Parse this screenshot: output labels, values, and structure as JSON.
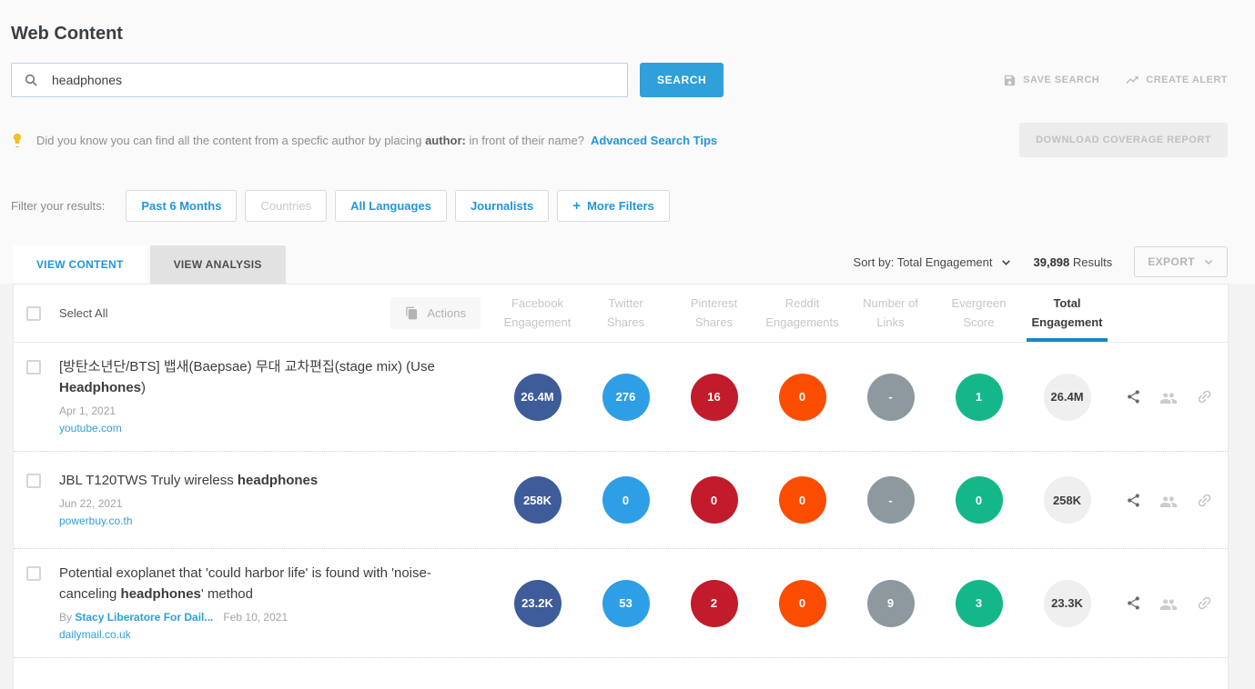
{
  "page": {
    "title": "Web Content"
  },
  "search": {
    "value": "headphones",
    "button": "SEARCH"
  },
  "header_actions": {
    "save_search": "SAVE SEARCH",
    "create_alert": "CREATE ALERT",
    "download_report": "DOWNLOAD COVERAGE REPORT"
  },
  "tip": {
    "prefix": "Did you know you can find all the content from a specfic author by placing ",
    "bold": "author:",
    "suffix": " in front of their name?",
    "link": "Advanced Search Tips"
  },
  "filters": {
    "label": "Filter your results:",
    "buttons": [
      {
        "label": "Past 6 Months",
        "state": "enabled",
        "plus": false
      },
      {
        "label": "Countries",
        "state": "disabled",
        "plus": false
      },
      {
        "label": "All Languages",
        "state": "enabled",
        "plus": false
      },
      {
        "label": "Journalists",
        "state": "enabled",
        "plus": false
      },
      {
        "label": "More Filters",
        "state": "enabled",
        "plus": true
      }
    ],
    "plus_glyph": "+"
  },
  "tabs": [
    {
      "label": "VIEW CONTENT",
      "active": true
    },
    {
      "label": "VIEW ANALYSIS",
      "active": false
    }
  ],
  "sort": {
    "label": "Sort by: Total Engagement",
    "results_count": "39,898",
    "results_label": "Results",
    "export_label": "EXPORT"
  },
  "table": {
    "select_all": "Select All",
    "actions_label": "Actions",
    "metric_columns": [
      {
        "line1": "Facebook",
        "line2": "Engagement",
        "color": "#3e5c9a",
        "text": "#ffffff",
        "active": false
      },
      {
        "line1": "Twitter",
        "line2": "Shares",
        "color": "#2e9fe6",
        "text": "#ffffff",
        "active": false
      },
      {
        "line1": "Pinterest",
        "line2": "Shares",
        "color": "#c11b2c",
        "text": "#ffffff",
        "active": false
      },
      {
        "line1": "Reddit",
        "line2": "Engagements",
        "color": "#fb4d00",
        "text": "#ffffff",
        "active": false
      },
      {
        "line1": "Number of",
        "line2": "Links",
        "color": "#8d999f",
        "text": "#ffffff",
        "active": false
      },
      {
        "line1": "Evergreen",
        "line2": "Score",
        "color": "#14b78a",
        "text": "#ffffff",
        "active": false
      },
      {
        "line1": "Total",
        "line2": "Engagement",
        "color": "#efefef",
        "text": "#3d3d3d",
        "active": true
      }
    ],
    "rows": [
      {
        "title": [
          {
            "t": "[방탄소년단/BTS] 뱁새(Baepsae) 무대 교차편집(stage mix) (Use ",
            "b": false
          },
          {
            "t": "Headphones",
            "b": true
          },
          {
            "t": ")",
            "b": false
          }
        ],
        "author_prefix": "",
        "author": "",
        "date": "Apr 1, 2021",
        "domain": "youtube.com",
        "metrics": [
          "26.4M",
          "276",
          "16",
          "0",
          "-",
          "1",
          "26.4M"
        ]
      },
      {
        "title": [
          {
            "t": "JBL T120TWS Truly wireless ",
            "b": false
          },
          {
            "t": "headphones",
            "b": true
          }
        ],
        "author_prefix": "",
        "author": "",
        "date": "Jun 22, 2021",
        "domain": "powerbuy.co.th",
        "metrics": [
          "258K",
          "0",
          "0",
          "0",
          "-",
          "0",
          "258K"
        ]
      },
      {
        "title": [
          {
            "t": "Potential exoplanet that 'could harbor life' is found with 'noise-canceling ",
            "b": false
          },
          {
            "t": "headphones",
            "b": true
          },
          {
            "t": "' method",
            "b": false
          }
        ],
        "author_prefix": "By ",
        "author": "Stacy Liberatore For Dail...",
        "date": "Feb 10, 2021",
        "domain": "dailymail.co.uk",
        "metrics": [
          "23.2K",
          "53",
          "2",
          "0",
          "9",
          "3",
          "23.3K"
        ]
      }
    ]
  },
  "colors": {
    "accent_blue": "#2196d9",
    "button_blue": "#2fa0da",
    "sort_underline": "#1787c9",
    "facebook": "#3e5c9a",
    "twitter": "#2e9fe6",
    "pinterest": "#c11b2c",
    "reddit": "#fb4d00",
    "links_gray": "#8d999f",
    "evergreen_green": "#14b78a",
    "total_bg": "#efefef"
  }
}
